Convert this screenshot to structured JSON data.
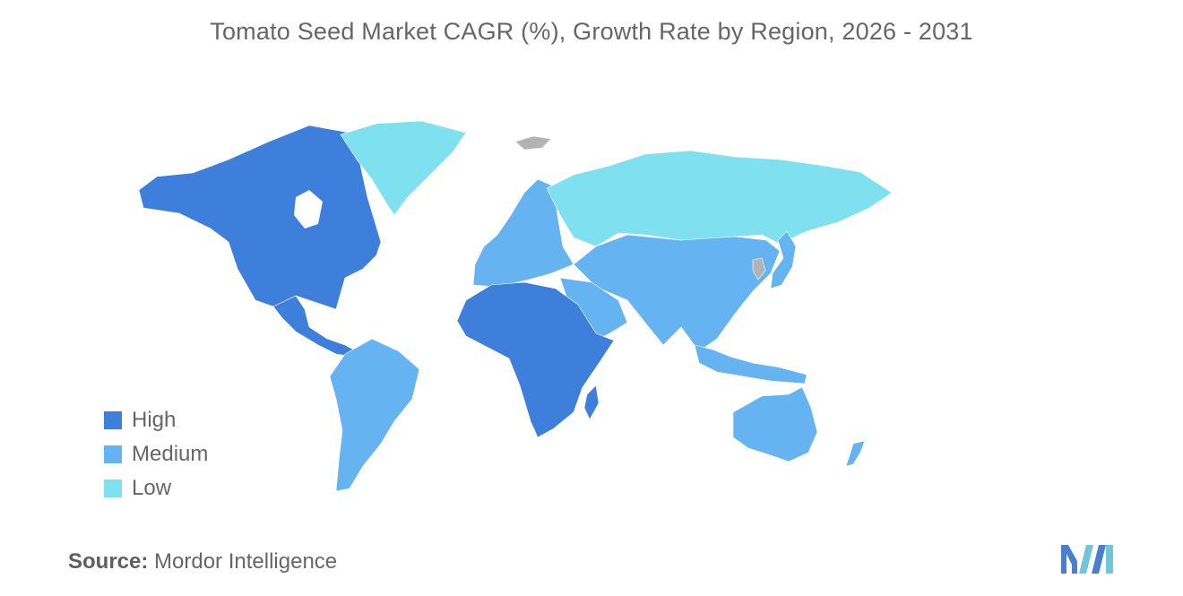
{
  "title": "Tomato Seed Market CAGR (%), Growth Rate by Region, 2026 - 2031",
  "colors": {
    "high": "#3d7fdb",
    "medium": "#66b3f2",
    "low": "#7fe0ef",
    "no_data": "#b3b3b3"
  },
  "legend": [
    {
      "key": "high",
      "label": "High"
    },
    {
      "key": "medium",
      "label": "Medium"
    },
    {
      "key": "low",
      "label": "Low"
    }
  ],
  "regions": [
    {
      "name": "north-america",
      "level": "high"
    },
    {
      "name": "greenland",
      "level": "low"
    },
    {
      "name": "central-america",
      "level": "high"
    },
    {
      "name": "south-america",
      "level": "medium"
    },
    {
      "name": "europe",
      "level": "medium"
    },
    {
      "name": "russia",
      "level": "low"
    },
    {
      "name": "africa",
      "level": "high"
    },
    {
      "name": "madagascar",
      "level": "high"
    },
    {
      "name": "middle-east",
      "level": "medium"
    },
    {
      "name": "asia",
      "level": "medium"
    },
    {
      "name": "japan",
      "level": "medium"
    },
    {
      "name": "southeast-asia",
      "level": "medium"
    },
    {
      "name": "australia",
      "level": "medium"
    },
    {
      "name": "new-zealand",
      "level": "medium"
    },
    {
      "name": "svalbard",
      "level": "no_data"
    },
    {
      "name": "korea",
      "level": "no_data"
    }
  ],
  "source": {
    "label": "Source:",
    "value": "Mordor Intelligence"
  }
}
